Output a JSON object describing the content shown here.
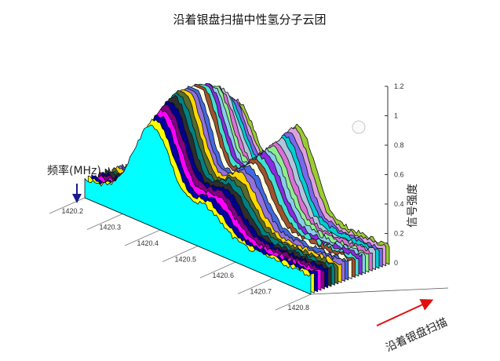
{
  "chart_data": {
    "type": "area",
    "title": "沿着银盘扫描中性氢分子云团",
    "xlabel": "频率(MHz)",
    "ylabel": "信号强度",
    "zlabel": "沿着银盘扫描",
    "x_ticks": [
      "1420.2",
      "1420.3",
      "1420.4",
      "1420.5",
      "1420.6",
      "1420.7",
      "1420.8"
    ],
    "xlim": [
      1420.2,
      1420.8
    ],
    "ylim": [
      0,
      1.2
    ],
    "y_ticks": [
      "0",
      "0.2",
      "0.4",
      "0.6",
      "0.8",
      "1",
      "1.2"
    ],
    "scan_count": 24,
    "colors": [
      "#00ffff",
      "#ffff00",
      "#0000aa",
      "#ff00ff",
      "#800080",
      "#00008b",
      "#2e2e2e",
      "#008080",
      "#556b2f",
      "#ffd700",
      "#9370db",
      "#4169e1",
      "#ffffe0",
      "#a0522d",
      "#40e0d0",
      "#8a2be2",
      "#87ceeb",
      "#90ee90",
      "#da70d6",
      "#b0c4de",
      "#00ced1",
      "#7b68ee",
      "#dda0dd",
      "#9acd32"
    ]
  }
}
